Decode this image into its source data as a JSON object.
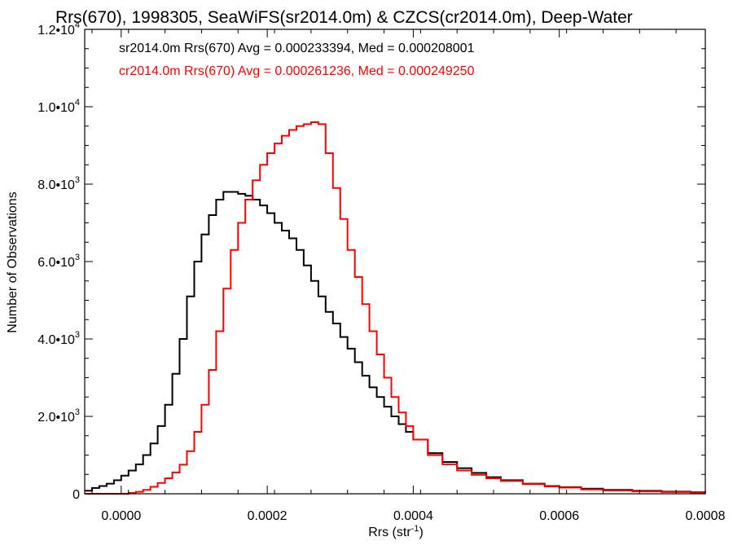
{
  "chart_data": {
    "type": "line",
    "title": "Rrs(670), 1998305, SeaWiFS(sr2014.0m) & CZCS(cr2014.0m), Deep-Water",
    "xlabel": "Rrs (str",
    "xlabel_sup": "-1",
    "xlabel_suffix": ")",
    "ylabel": "Number of Observations",
    "xlim": [
      -5e-05,
      0.0008
    ],
    "ylim": [
      0,
      12000
    ],
    "grid": false,
    "x_ticks": [
      {
        "value": 0.0,
        "label": "0.0000"
      },
      {
        "value": 0.0002,
        "label": "0.0002"
      },
      {
        "value": 0.0004,
        "label": "0.0004"
      },
      {
        "value": 0.0006,
        "label": "0.0006"
      },
      {
        "value": 0.0008,
        "label": "0.0008"
      }
    ],
    "y_ticks": [
      {
        "value": 0,
        "mant": "0",
        "exp": ""
      },
      {
        "value": 2000,
        "mant": "2.0•10",
        "exp": "3"
      },
      {
        "value": 4000,
        "mant": "4.0•10",
        "exp": "3"
      },
      {
        "value": 6000,
        "mant": "6.0•10",
        "exp": "3"
      },
      {
        "value": 8000,
        "mant": "8.0•10",
        "exp": "3"
      },
      {
        "value": 10000,
        "mant": "1.0•10",
        "exp": "4"
      },
      {
        "value": 12000,
        "mant": "1.2•10",
        "exp": "4"
      }
    ],
    "annotations": [
      {
        "text": "sr2014.0m Rrs(670) Avg = 0.000233394, Med = 0.000208001",
        "color": "#000000"
      },
      {
        "text": "cr2014.0m Rrs(670) Avg = 0.000261236, Med = 0.000249250",
        "color": "#ff0000"
      }
    ],
    "series": [
      {
        "color": "#000000",
        "x": [
          -5e-05,
          -4e-05,
          -3e-05,
          -2e-05,
          -1e-05,
          0.0,
          1e-05,
          2e-05,
          3e-05,
          4e-05,
          5e-05,
          6e-05,
          7e-05,
          8e-05,
          9e-05,
          0.0001,
          0.00011,
          0.00012,
          0.00013,
          0.00014,
          0.00015,
          0.00016,
          0.00017,
          0.00018,
          0.00019,
          0.0002,
          0.00021,
          0.00022,
          0.00023,
          0.00024,
          0.00025,
          0.00026,
          0.00027,
          0.00028,
          0.00029,
          0.0003,
          0.00031,
          0.00032,
          0.00033,
          0.00034,
          0.00035,
          0.00036,
          0.00037,
          0.00038,
          0.00039,
          0.0004,
          0.00042,
          0.00044,
          0.00046,
          0.00048,
          0.0005,
          0.00052,
          0.00055,
          0.00058,
          0.0006,
          0.00063,
          0.00066,
          0.0007,
          0.00074,
          0.00078,
          0.0008
        ],
        "y": [
          80,
          150,
          200,
          260,
          350,
          470,
          600,
          760,
          1000,
          1300,
          1750,
          2300,
          3100,
          4000,
          5100,
          6000,
          6700,
          7200,
          7600,
          7800,
          7800,
          7750,
          7700,
          7600,
          7450,
          7250,
          7000,
          6800,
          6600,
          6300,
          5900,
          5500,
          5100,
          4700,
          4400,
          4050,
          3750,
          3400,
          3050,
          2750,
          2500,
          2250,
          2000,
          1800,
          1600,
          1400,
          1050,
          820,
          660,
          540,
          430,
          350,
          260,
          200,
          170,
          130,
          100,
          75,
          55,
          40,
          30
        ]
      },
      {
        "color": "#ff0000",
        "x": [
          -5e-05,
          -4e-05,
          -3e-05,
          -2e-05,
          -1e-05,
          0.0,
          1e-05,
          2e-05,
          3e-05,
          4e-05,
          5e-05,
          6e-05,
          7e-05,
          8e-05,
          9e-05,
          0.0001,
          0.00011,
          0.00012,
          0.00013,
          0.00014,
          0.00015,
          0.00016,
          0.00017,
          0.00018,
          0.00019,
          0.0002,
          0.00021,
          0.00022,
          0.00023,
          0.00024,
          0.00025,
          0.00026,
          0.00027,
          0.00028,
          0.00029,
          0.0003,
          0.00031,
          0.00032,
          0.00033,
          0.00034,
          0.00035,
          0.00036,
          0.00037,
          0.00038,
          0.00039,
          0.0004,
          0.00042,
          0.00044,
          0.00046,
          0.00048,
          0.0005,
          0.00052,
          0.00055,
          0.00058,
          0.0006,
          0.00063,
          0.00066,
          0.0007,
          0.00074,
          0.00078,
          0.0008
        ],
        "y": [
          0,
          0,
          0,
          0,
          0,
          0,
          20,
          50,
          100,
          180,
          280,
          400,
          550,
          750,
          1100,
          1600,
          2300,
          3200,
          4200,
          5300,
          6300,
          7000,
          7600,
          8100,
          8500,
          8800,
          9050,
          9250,
          9400,
          9500,
          9550,
          9600,
          9550,
          8800,
          7900,
          7100,
          6300,
          5600,
          4900,
          4200,
          3600,
          3000,
          2500,
          2100,
          1750,
          1400,
          1000,
          760,
          600,
          490,
          400,
          330,
          250,
          190,
          160,
          110,
          85,
          60,
          45,
          30,
          20
        ]
      }
    ]
  }
}
